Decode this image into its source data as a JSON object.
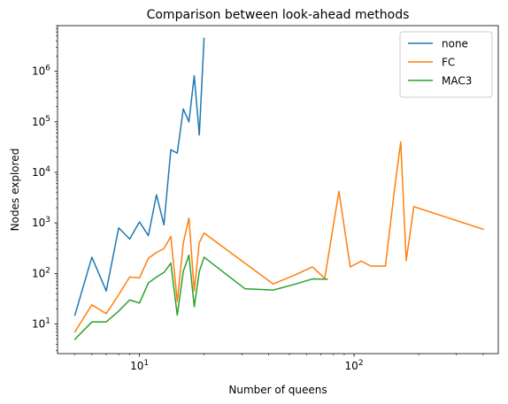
{
  "chart_data": {
    "type": "line",
    "title": "Comparison between look-ahead methods",
    "xlabel": "Number of queens",
    "ylabel": "Nodes explored",
    "x_scale": "log",
    "y_scale": "log",
    "xlim": [
      4.15,
      470
    ],
    "ylim": [
      2.6,
      8000000
    ],
    "x_ticks": [
      {
        "value": 10,
        "base": "10",
        "exp": "1"
      },
      {
        "value": 100,
        "base": "10",
        "exp": "2"
      }
    ],
    "y_ticks": [
      {
        "value": 10,
        "base": "10",
        "exp": "1"
      },
      {
        "value": 100,
        "base": "10",
        "exp": "2"
      },
      {
        "value": 1000,
        "base": "10",
        "exp": "3"
      },
      {
        "value": 10000,
        "base": "10",
        "exp": "4"
      },
      {
        "value": 100000,
        "base": "10",
        "exp": "5"
      },
      {
        "value": 1000000,
        "base": "10",
        "exp": "6"
      }
    ],
    "legend_position": "top-right",
    "grid": false,
    "series": [
      {
        "name": "none",
        "color": "#1f77b4",
        "x": [
          5,
          6,
          7,
          8,
          9,
          10,
          11,
          12,
          13,
          14,
          15,
          16,
          17,
          18,
          19,
          20
        ],
        "y": [
          15,
          210,
          45,
          800,
          480,
          1050,
          560,
          3600,
          920,
          28000,
          24000,
          180000,
          100000,
          820000,
          55000,
          4500000
        ]
      },
      {
        "name": "FC",
        "color": "#ff7f0e",
        "x": [
          5,
          6,
          7,
          8,
          9,
          10,
          11,
          12,
          13,
          14,
          15,
          16,
          17,
          18,
          19,
          20,
          42,
          52,
          64,
          73,
          85,
          96,
          108,
          120,
          140,
          155,
          165,
          175,
          190,
          400
        ],
        "y": [
          7,
          24,
          16,
          38,
          85,
          82,
          200,
          260,
          310,
          540,
          28,
          400,
          1250,
          45,
          410,
          630,
          62,
          90,
          135,
          80,
          4200,
          135,
          175,
          140,
          140,
          5300,
          40000,
          180,
          2100,
          750
        ]
      },
      {
        "name": "MAC3",
        "color": "#2ca02c",
        "x": [
          5,
          6,
          7,
          8,
          9,
          10,
          11,
          12,
          13,
          14,
          15,
          16,
          17,
          18,
          19,
          20,
          31,
          42,
          52,
          64,
          75
        ],
        "y": [
          5,
          11,
          11,
          18,
          30,
          26,
          65,
          85,
          105,
          160,
          15,
          110,
          230,
          22,
          110,
          210,
          50,
          47,
          60,
          78,
          77
        ]
      }
    ]
  }
}
